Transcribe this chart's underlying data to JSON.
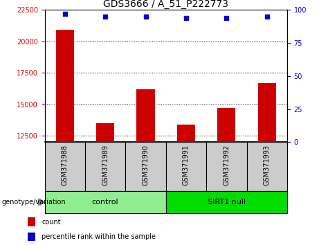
{
  "title": "GDS3666 / A_51_P222773",
  "samples": [
    "GSM371988",
    "GSM371989",
    "GSM371990",
    "GSM371991",
    "GSM371992",
    "GSM371993"
  ],
  "counts": [
    20900,
    13500,
    16200,
    13400,
    14700,
    16700
  ],
  "percentile_ranks": [
    97,
    95,
    95,
    94,
    94,
    95
  ],
  "ylim_left": [
    12000,
    22500
  ],
  "ylim_right": [
    0,
    100
  ],
  "yticks_left": [
    12500,
    15000,
    17500,
    20000,
    22500
  ],
  "yticks_right": [
    0,
    25,
    50,
    75,
    100
  ],
  "bar_color": "#cc0000",
  "dot_color": "#0000cc",
  "background_color": "#ffffff",
  "grid_color": "#000000",
  "groups": [
    {
      "label": "control",
      "indices": [
        0,
        1,
        2
      ],
      "color": "#90ee90"
    },
    {
      "label": "SIRT1 null",
      "indices": [
        3,
        4,
        5
      ],
      "color": "#00dd00"
    }
  ],
  "legend_items": [
    {
      "label": "count",
      "color": "#cc0000"
    },
    {
      "label": "percentile rank within the sample",
      "color": "#0000cc"
    }
  ],
  "genotype_label": "genotype/variation",
  "bar_color_left": "#cc0000",
  "bar_color_right": "#0000cc",
  "bar_width": 0.45,
  "tick_label_fontsize": 7,
  "title_fontsize": 10,
  "sample_box_color": "#cccccc"
}
